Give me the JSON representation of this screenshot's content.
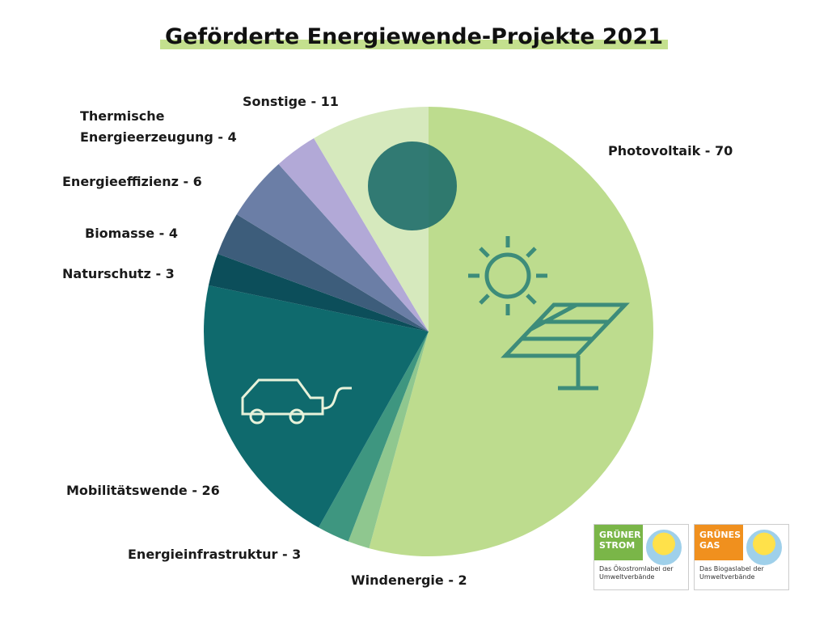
{
  "chart_data": {
    "type": "pie",
    "title": "Geförderte Energiewende-Projekte 2021",
    "values": [
      70,
      2,
      3,
      26,
      3,
      4,
      6,
      4,
      11
    ],
    "value_labels": [
      "Photovoltaik - 70",
      "Windenergie - 2",
      "Energieinfrastruktur - 3",
      "Mobilitätswende - 26",
      "Naturschutz - 3",
      "Biomasse - 4",
      "Energieeffizienz - 6",
      "Thermische Energieerzeugung - 4",
      "Sonstige - 11"
    ],
    "colors": [
      "#bddc8e",
      "#8fc78f",
      "#3e9680",
      "#0f6a6d",
      "#0c4e5a",
      "#3d5d7b",
      "#6b7ea6",
      "#b2a9d7",
      "#d6e9bd"
    ]
  },
  "logos": [
    {
      "title": "GRÜNER STROM",
      "caption": "Das Ökostromlabel der Umweltverbände",
      "color": "#7ab648"
    },
    {
      "title": "GRÜNES GAS",
      "caption": "Das Biogaslabel der Umweltverbände",
      "color": "#f0901e"
    }
  ]
}
